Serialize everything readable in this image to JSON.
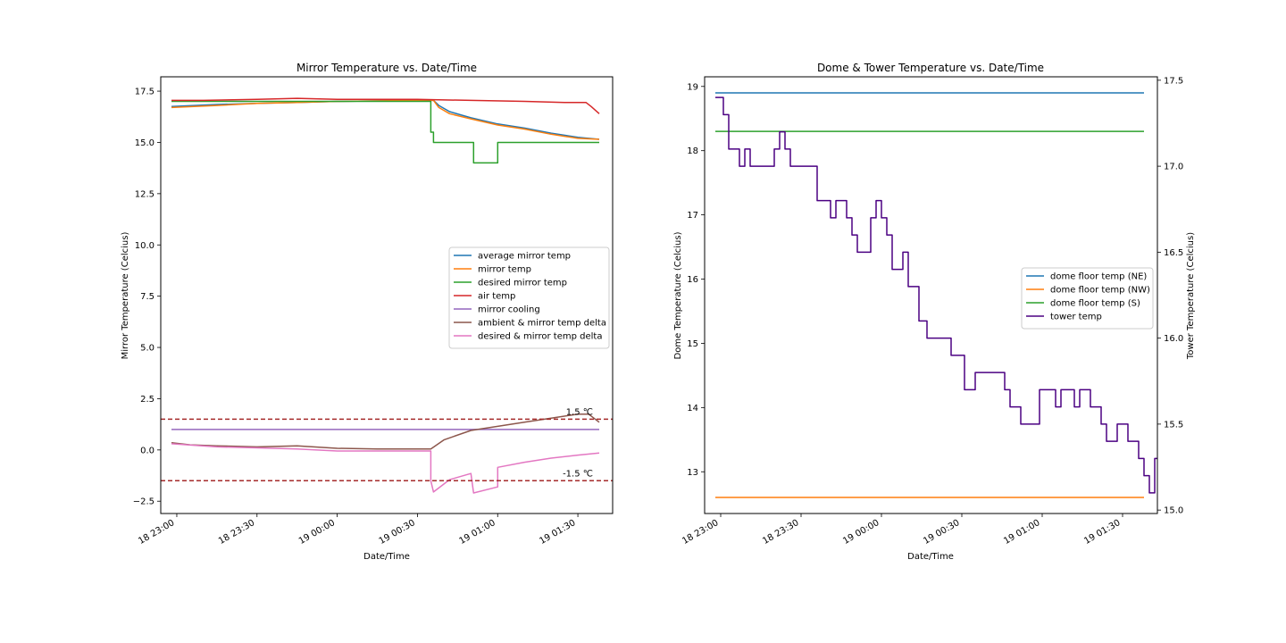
{
  "chart_data": [
    {
      "type": "line",
      "title": "Mirror Temperature vs. Date/Time",
      "xlabel": "Date/Time",
      "ylabel": "Mirror Temperature (Celcius)",
      "xlim": [
        "18 22:54",
        "19 01:43"
      ],
      "ylim": [
        -3.1,
        18.2
      ],
      "xticks": [
        {
          "t": "18 23:00",
          "label": "18 23:00"
        },
        {
          "t": "18 23:30",
          "label": "18 23:30"
        },
        {
          "t": "19 00:00",
          "label": "19 00:00"
        },
        {
          "t": "19 00:30",
          "label": "19 00:30"
        },
        {
          "t": "19 01:00",
          "label": "19 01:00"
        },
        {
          "t": "19 01:30",
          "label": "19 01:30"
        }
      ],
      "yticks": [
        {
          "v": -2.5,
          "label": "−2.5"
        },
        {
          "v": 0.0,
          "label": "0.0"
        },
        {
          "v": 2.5,
          "label": "2.5"
        },
        {
          "v": 5.0,
          "label": "5.0"
        },
        {
          "v": 7.5,
          "label": "7.5"
        },
        {
          "v": 10.0,
          "label": "10.0"
        },
        {
          "v": 12.5,
          "label": "12.5"
        },
        {
          "v": 15.0,
          "label": "15.0"
        },
        {
          "v": 17.5,
          "label": "17.5"
        }
      ],
      "legend_position": "right",
      "series": [
        {
          "name": "average mirror temp",
          "color": "#1f77b4",
          "points": [
            [
              "18 22:58",
              16.75
            ],
            [
              "18 23:15",
              16.85
            ],
            [
              "18 23:30",
              16.9
            ],
            [
              "18 23:45",
              16.95
            ],
            [
              "19 00:00",
              17.0
            ],
            [
              "19 00:30",
              17.05
            ],
            [
              "19 00:36",
              17.05
            ],
            [
              "19 00:38",
              16.8
            ],
            [
              "19 00:42",
              16.5
            ],
            [
              "19 00:50",
              16.2
            ],
            [
              "19 01:00",
              15.9
            ],
            [
              "19 01:10",
              15.7
            ],
            [
              "19 01:20",
              15.45
            ],
            [
              "19 01:30",
              15.25
            ],
            [
              "19 01:38",
              15.15
            ]
          ]
        },
        {
          "name": "mirror temp",
          "color": "#ff7f0e",
          "points": [
            [
              "18 22:58",
              16.7
            ],
            [
              "18 23:15",
              16.8
            ],
            [
              "18 23:30",
              16.9
            ],
            [
              "18 23:45",
              16.95
            ],
            [
              "19 00:00",
              17.0
            ],
            [
              "19 00:30",
              17.05
            ],
            [
              "19 00:36",
              17.05
            ],
            [
              "19 00:38",
              16.7
            ],
            [
              "19 00:42",
              16.4
            ],
            [
              "19 00:50",
              16.15
            ],
            [
              "19 01:00",
              15.85
            ],
            [
              "19 01:10",
              15.65
            ],
            [
              "19 01:20",
              15.4
            ],
            [
              "19 01:30",
              15.2
            ],
            [
              "19 01:38",
              15.15
            ]
          ]
        },
        {
          "name": "desired mirror temp",
          "color": "#2ca02c",
          "points": [
            [
              "18 22:58",
              17.0
            ],
            [
              "19 00:35",
              17.0
            ],
            [
              "19 00:35",
              15.5
            ],
            [
              "19 00:36",
              15.5
            ],
            [
              "19 00:36",
              15.0
            ],
            [
              "19 00:51",
              15.0
            ],
            [
              "19 00:51",
              14.0
            ],
            [
              "19 01:00",
              14.0
            ],
            [
              "19 01:00",
              15.0
            ],
            [
              "19 01:38",
              15.0
            ]
          ]
        },
        {
          "name": "air temp",
          "color": "#d62728",
          "points": [
            [
              "18 22:58",
              17.05
            ],
            [
              "18 23:10",
              17.05
            ],
            [
              "18 23:30",
              17.1
            ],
            [
              "18 23:45",
              17.15
            ],
            [
              "19 00:00",
              17.1
            ],
            [
              "19 00:30",
              17.1
            ],
            [
              "19 00:50",
              17.05
            ],
            [
              "19 01:10",
              17.0
            ],
            [
              "19 01:25",
              16.95
            ],
            [
              "19 01:33",
              16.95
            ],
            [
              "19 01:35",
              16.75
            ],
            [
              "19 01:38",
              16.4
            ]
          ]
        },
        {
          "name": "mirror cooling",
          "color": "#9467bd",
          "points": [
            [
              "18 22:58",
              1.0
            ],
            [
              "19 01:38",
              1.0
            ]
          ]
        },
        {
          "name": "ambient & mirror temp delta",
          "color": "#8c564b",
          "points": [
            [
              "18 22:58",
              0.35
            ],
            [
              "18 23:05",
              0.25
            ],
            [
              "18 23:15",
              0.2
            ],
            [
              "18 23:30",
              0.15
            ],
            [
              "18 23:45",
              0.2
            ],
            [
              "19 00:00",
              0.08
            ],
            [
              "19 00:15",
              0.05
            ],
            [
              "19 00:30",
              0.05
            ],
            [
              "19 00:35",
              0.05
            ],
            [
              "19 00:40",
              0.5
            ],
            [
              "19 00:50",
              0.95
            ],
            [
              "19 01:00",
              1.15
            ],
            [
              "19 01:10",
              1.35
            ],
            [
              "19 01:20",
              1.55
            ],
            [
              "19 01:30",
              1.75
            ],
            [
              "19 01:34",
              1.75
            ],
            [
              "19 01:38",
              1.35
            ]
          ]
        },
        {
          "name": "desired & mirror temp delta",
          "color": "#e377c2",
          "points": [
            [
              "18 22:58",
              0.3
            ],
            [
              "18 23:15",
              0.15
            ],
            [
              "18 23:30",
              0.1
            ],
            [
              "18 23:45",
              0.05
            ],
            [
              "19 00:00",
              -0.05
            ],
            [
              "19 00:15",
              -0.05
            ],
            [
              "19 00:35",
              -0.05
            ],
            [
              "19 00:35",
              -1.5
            ],
            [
              "19 00:36",
              -2.05
            ],
            [
              "19 00:42",
              -1.45
            ],
            [
              "19 00:50",
              -1.15
            ],
            [
              "19 00:51",
              -2.1
            ],
            [
              "19 01:00",
              -1.8
            ],
            [
              "19 01:00",
              -0.85
            ],
            [
              "19 01:10",
              -0.6
            ],
            [
              "19 01:20",
              -0.4
            ],
            [
              "19 01:30",
              -0.25
            ],
            [
              "19 01:38",
              -0.15
            ]
          ]
        }
      ],
      "reference_lines": [
        {
          "y": 1.5,
          "label": "1.5 ℃",
          "color": "#a52a2a",
          "style": "dashed"
        },
        {
          "y": -1.5,
          "label": "-1.5 ℃",
          "color": "#a52a2a",
          "style": "dashed"
        }
      ]
    },
    {
      "type": "line",
      "title": "Dome & Tower Temperature vs. Date/Time",
      "xlabel": "Date/Time",
      "ylabel": "Dome Temperature (Celcius)",
      "ylabel_right": "Tower Temperature (Celcius)",
      "xlim": [
        "18 22:54",
        "19 01:43"
      ],
      "ylim": [
        12.35,
        19.15
      ],
      "ylim_right": [
        14.98,
        17.52
      ],
      "xticks": [
        {
          "t": "18 23:00",
          "label": "18 23:00"
        },
        {
          "t": "18 23:30",
          "label": "18 23:30"
        },
        {
          "t": "19 00:00",
          "label": "19 00:00"
        },
        {
          "t": "19 00:30",
          "label": "19 00:30"
        },
        {
          "t": "19 01:00",
          "label": "19 01:00"
        },
        {
          "t": "19 01:30",
          "label": "19 01:30"
        }
      ],
      "yticks": [
        {
          "v": 13,
          "label": "13"
        },
        {
          "v": 14,
          "label": "14"
        },
        {
          "v": 15,
          "label": "15"
        },
        {
          "v": 16,
          "label": "16"
        },
        {
          "v": 17,
          "label": "17"
        },
        {
          "v": 18,
          "label": "18"
        },
        {
          "v": 19,
          "label": "19"
        }
      ],
      "yticks_right": [
        {
          "v": 15.0,
          "label": "15.0"
        },
        {
          "v": 15.5,
          "label": "15.5"
        },
        {
          "v": 16.0,
          "label": "16.0"
        },
        {
          "v": 16.5,
          "label": "16.5"
        },
        {
          "v": 17.0,
          "label": "17.0"
        },
        {
          "v": 17.5,
          "label": "17.5"
        }
      ],
      "legend_position": "right",
      "series": [
        {
          "name": "dome floor temp (NE)",
          "color": "#1f77b4",
          "axis": "left",
          "points": [
            [
              "18 22:58",
              18.9
            ],
            [
              "19 01:38",
              18.9
            ]
          ]
        },
        {
          "name": "dome floor temp (NW)",
          "color": "#ff7f0e",
          "axis": "left",
          "points": [
            [
              "18 22:58",
              12.6
            ],
            [
              "19 01:38",
              12.6
            ]
          ]
        },
        {
          "name": "dome floor temp (S)",
          "color": "#2ca02c",
          "axis": "left",
          "points": [
            [
              "18 22:58",
              18.3
            ],
            [
              "19 01:38",
              18.3
            ]
          ]
        },
        {
          "name": "tower temp",
          "color": "#4b0082",
          "axis": "right",
          "step": true,
          "points": [
            [
              "18 22:58",
              17.4
            ],
            [
              "18 23:01",
              17.3
            ],
            [
              "18 23:03",
              17.1
            ],
            [
              "18 23:07",
              17.0
            ],
            [
              "18 23:09",
              17.1
            ],
            [
              "18 23:11",
              17.0
            ],
            [
              "18 23:20",
              17.1
            ],
            [
              "18 23:22",
              17.2
            ],
            [
              "18 23:24",
              17.1
            ],
            [
              "18 23:26",
              17.0
            ],
            [
              "18 23:36",
              16.8
            ],
            [
              "18 23:41",
              16.7
            ],
            [
              "18 23:43",
              16.8
            ],
            [
              "18 23:47",
              16.7
            ],
            [
              "18 23:49",
              16.6
            ],
            [
              "18 23:51",
              16.5
            ],
            [
              "18 23:56",
              16.7
            ],
            [
              "18 23:58",
              16.8
            ],
            [
              "19 00:00",
              16.7
            ],
            [
              "19 00:02",
              16.6
            ],
            [
              "19 00:04",
              16.4
            ],
            [
              "19 00:08",
              16.5
            ],
            [
              "19 00:10",
              16.3
            ],
            [
              "19 00:14",
              16.1
            ],
            [
              "19 00:17",
              16.0
            ],
            [
              "19 00:26",
              15.9
            ],
            [
              "19 00:31",
              15.7
            ],
            [
              "19 00:35",
              15.8
            ],
            [
              "19 00:46",
              15.7
            ],
            [
              "19 00:48",
              15.6
            ],
            [
              "19 00:52",
              15.5
            ],
            [
              "19 00:59",
              15.7
            ],
            [
              "19 01:05",
              15.6
            ],
            [
              "19 01:07",
              15.7
            ],
            [
              "19 01:12",
              15.6
            ],
            [
              "19 01:14",
              15.7
            ],
            [
              "19 01:18",
              15.6
            ],
            [
              "19 01:22",
              15.5
            ],
            [
              "19 01:24",
              15.4
            ],
            [
              "19 01:28",
              15.5
            ],
            [
              "19 01:32",
              15.4
            ],
            [
              "19 01:36",
              15.3
            ],
            [
              "19 01:38",
              15.2
            ],
            [
              "19 01:40",
              15.1
            ],
            [
              "19 01:42",
              15.3
            ],
            [
              "19 01:43",
              15.3
            ]
          ]
        }
      ]
    }
  ]
}
